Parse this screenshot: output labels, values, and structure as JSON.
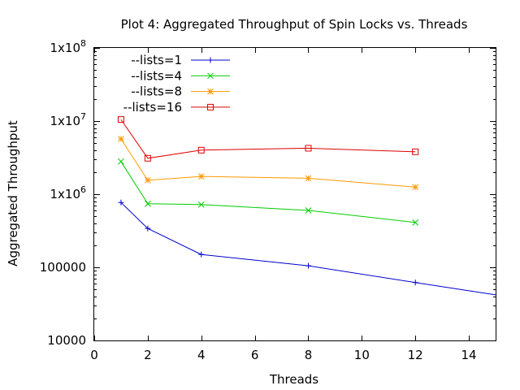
{
  "chart_data": {
    "type": "line",
    "title": "Plot 4: Aggregated Throughput of Spin Locks vs. Threads",
    "xlabel": "Threads",
    "ylabel": "Aggregated Throughput",
    "xlim": [
      0,
      15
    ],
    "ylim": [
      10000,
      100000000
    ],
    "yscale": "log",
    "grid": false,
    "legend_position": "top-left",
    "x_ticks": [
      0,
      2,
      4,
      6,
      8,
      10,
      12,
      14
    ],
    "x_tick_labels": [
      "0",
      "2",
      "4",
      "6",
      "8",
      "10",
      "12",
      "14"
    ],
    "y_ticks": [
      {
        "value": 10000,
        "label": "10000",
        "sup": ""
      },
      {
        "value": 100000,
        "label": "100000",
        "sup": ""
      },
      {
        "value": 1000000,
        "label": "1x10",
        "sup": "6"
      },
      {
        "value": 10000000,
        "label": "1x10",
        "sup": "7"
      },
      {
        "value": 100000000,
        "label": "1x10",
        "sup": "8"
      }
    ],
    "series": [
      {
        "name": "--lists=1",
        "color": "#0000cc",
        "marker": "plus",
        "x": [
          1,
          2,
          4,
          8,
          12,
          15
        ],
        "values": [
          770000,
          340000,
          150000,
          105000,
          62000,
          42000
        ],
        "marker_points": [
          0,
          1,
          2,
          3,
          4
        ]
      },
      {
        "name": "--lists=4",
        "color": "#00cc00",
        "marker": "cross",
        "x": [
          1,
          2,
          4,
          8,
          12
        ],
        "values": [
          2800000,
          740000,
          720000,
          600000,
          410000
        ],
        "marker_points": [
          0,
          1,
          2,
          3,
          4
        ]
      },
      {
        "name": "--lists=8",
        "color": "#ff9900",
        "marker": "star",
        "x": [
          1,
          2,
          4,
          8,
          12
        ],
        "values": [
          5700000,
          1550000,
          1750000,
          1650000,
          1250000
        ],
        "marker_points": [
          0,
          1,
          2,
          3,
          4
        ]
      },
      {
        "name": "--lists=16",
        "color": "#dd0000",
        "marker": "square",
        "x": [
          1,
          2,
          4,
          8,
          12
        ],
        "values": [
          10500000,
          3100000,
          4000000,
          4250000,
          3800000
        ],
        "marker_points": [
          0,
          1,
          2,
          3,
          4
        ]
      }
    ]
  }
}
